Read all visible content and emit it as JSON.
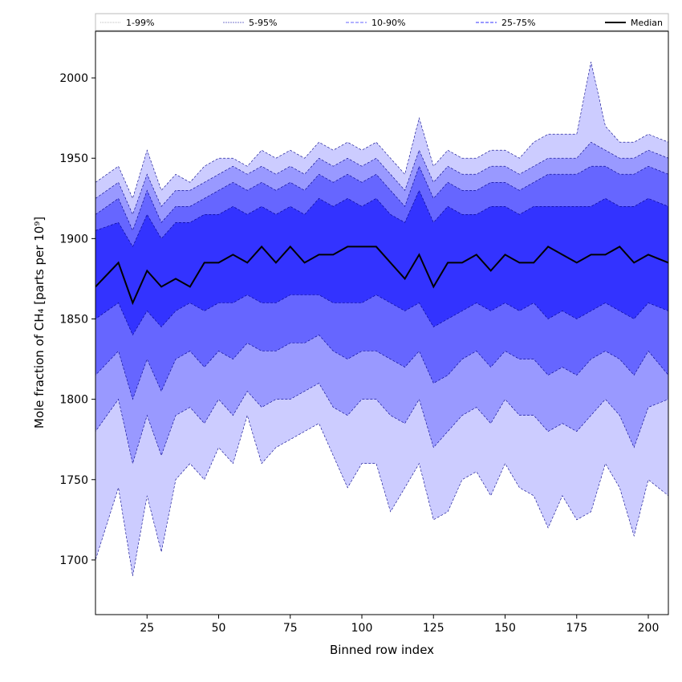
{
  "chart_data": {
    "type": "area",
    "xlabel": "Binned row index",
    "ylabel": "Mole fraction of CH₄ [parts per 10⁹]",
    "xlim": [
      7,
      207
    ],
    "ylim": [
      1666,
      2029
    ],
    "xticks": [
      25,
      50,
      75,
      100,
      125,
      150,
      175,
      200
    ],
    "yticks": [
      1700,
      1750,
      1800,
      1850,
      1900,
      1950,
      2000
    ],
    "legend_position": "top",
    "x": [
      7,
      15,
      20,
      25,
      30,
      35,
      40,
      45,
      50,
      55,
      60,
      65,
      70,
      75,
      80,
      85,
      90,
      95,
      100,
      105,
      110,
      115,
      120,
      125,
      130,
      135,
      140,
      145,
      150,
      155,
      160,
      165,
      170,
      175,
      180,
      185,
      190,
      195,
      200,
      207
    ],
    "bands": [
      {
        "name": "1-99%",
        "color": "#ccccff",
        "lower": [
          1700,
          1745,
          1690,
          1740,
          1705,
          1750,
          1760,
          1750,
          1770,
          1760,
          1790,
          1760,
          1770,
          1775,
          1780,
          1785,
          1765,
          1745,
          1760,
          1760,
          1730,
          1745,
          1760,
          1725,
          1730,
          1750,
          1755,
          1740,
          1760,
          1745,
          1740,
          1720,
          1740,
          1725,
          1730,
          1760,
          1745,
          1715,
          1750,
          1740
        ],
        "upper": [
          1935,
          1945,
          1925,
          1955,
          1930,
          1940,
          1935,
          1945,
          1950,
          1950,
          1945,
          1955,
          1950,
          1955,
          1950,
          1960,
          1955,
          1960,
          1955,
          1960,
          1950,
          1940,
          1975,
          1945,
          1955,
          1950,
          1950,
          1955,
          1955,
          1950,
          1960,
          1965,
          1965,
          1965,
          2010,
          1970,
          1960,
          1960,
          1965,
          1960
        ]
      },
      {
        "name": "5-95%",
        "color": "#9999ff",
        "lower": [
          1780,
          1800,
          1760,
          1790,
          1765,
          1790,
          1795,
          1785,
          1800,
          1790,
          1805,
          1795,
          1800,
          1800,
          1805,
          1810,
          1795,
          1790,
          1800,
          1800,
          1790,
          1785,
          1800,
          1770,
          1780,
          1790,
          1795,
          1785,
          1800,
          1790,
          1790,
          1780,
          1785,
          1780,
          1790,
          1800,
          1790,
          1770,
          1795,
          1800
        ],
        "upper": [
          1925,
          1935,
          1915,
          1940,
          1920,
          1930,
          1930,
          1935,
          1940,
          1945,
          1940,
          1945,
          1940,
          1945,
          1940,
          1950,
          1945,
          1950,
          1945,
          1950,
          1940,
          1930,
          1955,
          1935,
          1945,
          1940,
          1940,
          1945,
          1945,
          1940,
          1945,
          1950,
          1950,
          1950,
          1960,
          1955,
          1950,
          1950,
          1955,
          1950
        ]
      },
      {
        "name": "10-90%",
        "color": "#6666ff",
        "lower": [
          1815,
          1830,
          1800,
          1825,
          1805,
          1825,
          1830,
          1820,
          1830,
          1825,
          1835,
          1830,
          1830,
          1835,
          1835,
          1840,
          1830,
          1825,
          1830,
          1830,
          1825,
          1820,
          1830,
          1810,
          1815,
          1825,
          1830,
          1820,
          1830,
          1825,
          1825,
          1815,
          1820,
          1815,
          1825,
          1830,
          1825,
          1815,
          1830,
          1815
        ],
        "upper": [
          1915,
          1925,
          1905,
          1930,
          1910,
          1920,
          1920,
          1925,
          1930,
          1935,
          1930,
          1935,
          1930,
          1935,
          1930,
          1940,
          1935,
          1940,
          1935,
          1940,
          1930,
          1920,
          1945,
          1925,
          1935,
          1930,
          1930,
          1935,
          1935,
          1930,
          1935,
          1940,
          1940,
          1940,
          1945,
          1945,
          1940,
          1940,
          1945,
          1940
        ]
      },
      {
        "name": "25-75%",
        "color": "#3333ff",
        "lower": [
          1850,
          1860,
          1840,
          1855,
          1845,
          1855,
          1860,
          1855,
          1860,
          1860,
          1865,
          1860,
          1860,
          1865,
          1865,
          1865,
          1860,
          1860,
          1860,
          1865,
          1860,
          1855,
          1860,
          1845,
          1850,
          1855,
          1860,
          1855,
          1860,
          1855,
          1860,
          1850,
          1855,
          1850,
          1855,
          1860,
          1855,
          1850,
          1860,
          1855
        ],
        "upper": [
          1905,
          1910,
          1895,
          1915,
          1900,
          1910,
          1910,
          1915,
          1915,
          1920,
          1915,
          1920,
          1915,
          1920,
          1915,
          1925,
          1920,
          1925,
          1920,
          1925,
          1915,
          1910,
          1930,
          1910,
          1920,
          1915,
          1915,
          1920,
          1920,
          1915,
          1920,
          1920,
          1920,
          1920,
          1920,
          1925,
          1920,
          1920,
          1925,
          1920
        ]
      }
    ],
    "median": {
      "name": "Median",
      "color": "#000000",
      "values": [
        1870,
        1885,
        1860,
        1880,
        1870,
        1875,
        1870,
        1885,
        1885,
        1890,
        1885,
        1895,
        1885,
        1895,
        1885,
        1890,
        1890,
        1895,
        1895,
        1895,
        1885,
        1875,
        1890,
        1870,
        1885,
        1885,
        1890,
        1880,
        1890,
        1885,
        1885,
        1895,
        1890,
        1885,
        1890,
        1890,
        1895,
        1885,
        1890,
        1885
      ]
    }
  }
}
